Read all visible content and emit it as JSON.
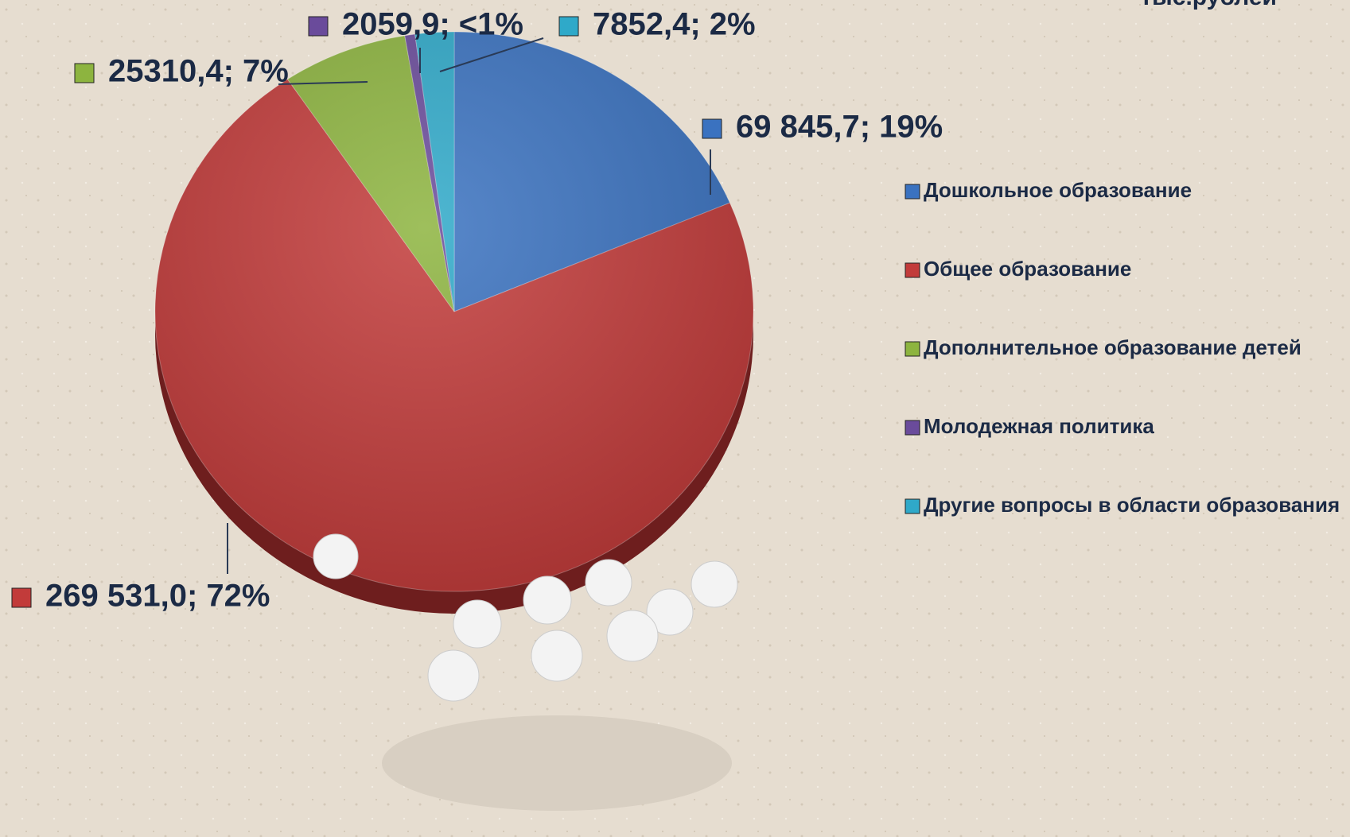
{
  "chart_data": {
    "type": "pie",
    "unit": "тыс.рублей",
    "categories": [
      "Дошкольное образование",
      "Общее образование",
      "Дополнительное образование детей",
      "Молодежная политика",
      "Другие вопросы в области образования"
    ],
    "values": [
      69845.7,
      269531.0,
      25310.4,
      2059.9,
      7852.4
    ],
    "value_labels": [
      "69 845,7; 19%",
      "269 531,0; 72%",
      "25310,4; 7%",
      "2059,9; <1%",
      "7852,4; 2%"
    ],
    "colors": [
      "#3a72c0",
      "#c23b3a",
      "#8db43f",
      "#6a4b9b",
      "#2fa9c9"
    ],
    "legend": "right"
  }
}
